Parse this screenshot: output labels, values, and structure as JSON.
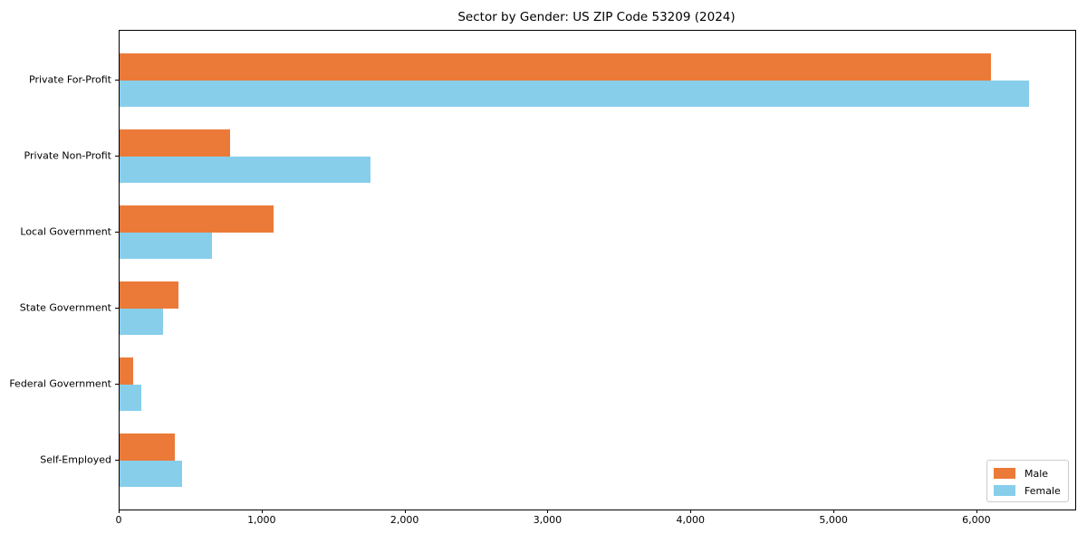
{
  "chart_data": {
    "type": "bar",
    "orientation": "horizontal",
    "title": "Sector by Gender: US ZIP Code 53209 (2024)",
    "categories": [
      "Private For-Profit",
      "Private Non-Profit",
      "Local Government",
      "State Government",
      "Federal Government",
      "Self-Employed"
    ],
    "series": [
      {
        "name": "Male",
        "color": "#EB7A38",
        "values": [
          6095,
          775,
          1075,
          410,
          95,
          385
        ]
      },
      {
        "name": "Female",
        "color": "#87CEEB",
        "values": [
          6365,
          1755,
          645,
          305,
          150,
          440
        ]
      }
    ],
    "xlabel": "",
    "ylabel": "",
    "xlim": [
      0,
      6685
    ],
    "xticks": [
      0,
      1000,
      2000,
      3000,
      4000,
      5000,
      6000
    ],
    "xticklabels": [
      "0",
      "1,000",
      "2,000",
      "3,000",
      "4,000",
      "5,000",
      "6,000"
    ],
    "grid": false,
    "legend_position": "lower-right",
    "axis_color": "#000000",
    "background_color": "#FFFFFF"
  }
}
